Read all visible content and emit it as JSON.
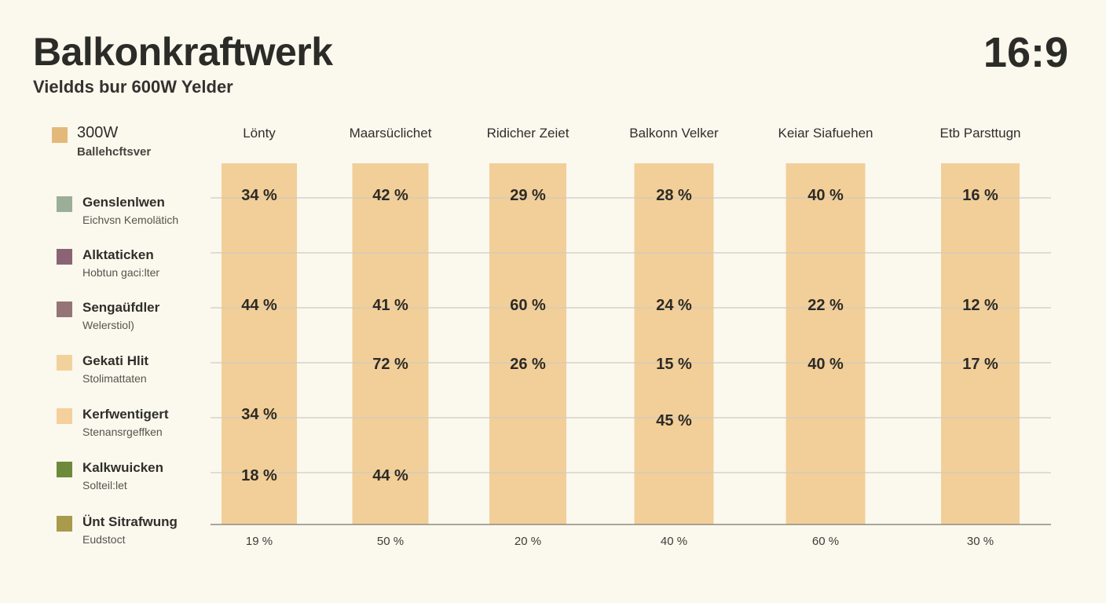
{
  "header": {
    "title": "Balkonkraftwerk",
    "subtitle": "Vieldds bur 600W Yelder",
    "ratio": "16:9"
  },
  "legend_head": {
    "name": "300W",
    "desc": "Ballehcftsver",
    "color": "#e3b97a"
  },
  "legend": [
    {
      "name": "Genslenlwen",
      "desc": "Eichvsn Kemolätich",
      "color": "#9aae98"
    },
    {
      "name": "Alktaticken",
      "desc": "Hobtun gaci:lter",
      "color": "#8a6474"
    },
    {
      "name": "Sengaüfdler",
      "desc": "Welerstiol)",
      "color": "#957478"
    },
    {
      "name": "Gekati Hlit",
      "desc": "Stolimattaten",
      "color": "#f2d29c"
    },
    {
      "name": "Kerfwentigert",
      "desc": "Stenansrgeffken",
      "color": "#f4d09c"
    },
    {
      "name": "Kalkwuicken",
      "desc": "Solteil:let",
      "color": "#6d8a3a"
    },
    {
      "name": "Ünt Sitrafwung",
      "desc": "Eudstoct",
      "color": "#a99a4c"
    }
  ],
  "chart_data": {
    "type": "bar",
    "categories": [
      "Lönty",
      "Maarsüclichet",
      "Ridicher Zeiet",
      "Balkonn Velker",
      "Keiar Siafuehen",
      "Etb Parsttugn"
    ],
    "bar_color": "#f2cf98",
    "grid": true,
    "data_labels": [
      [
        "34 %",
        "44 %",
        "",
        "34 %",
        "18 %"
      ],
      [
        "42 %",
        "41 %",
        "72 %",
        "",
        "44 %"
      ],
      [
        "29 %",
        "60 %",
        "26 %",
        "",
        ""
      ],
      [
        "28 %",
        "24 %",
        "15 %",
        "45 %",
        ""
      ],
      [
        "40 %",
        "22 %",
        "40 %",
        "",
        ""
      ],
      [
        "16 %",
        "12 %",
        "17 %",
        "",
        ""
      ]
    ],
    "bottom_labels": [
      "19 %",
      "50 %",
      "20 %",
      "40 %",
      "60 %",
      "30 %"
    ]
  }
}
